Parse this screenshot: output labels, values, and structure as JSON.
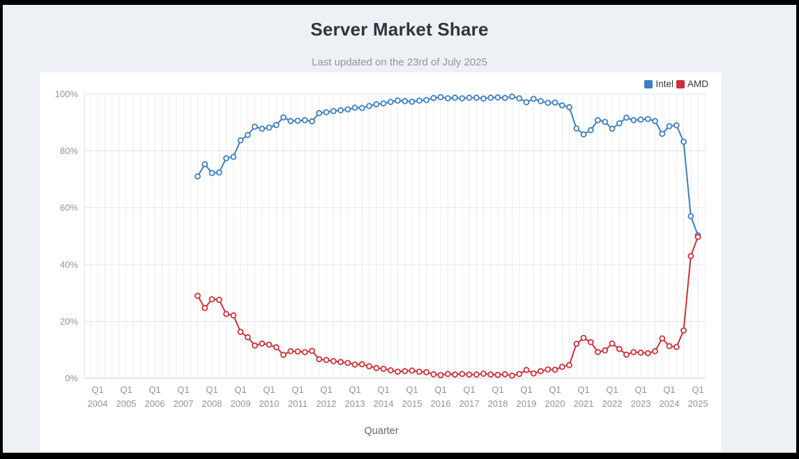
{
  "page": {
    "title": "Server Market Share",
    "subtitle": "Last updated on the 23rd of July 2025"
  },
  "chart_data": {
    "type": "line",
    "title": "Server Market Share",
    "xlabel": "Quarter",
    "ylabel": "",
    "ylim": [
      0,
      100
    ],
    "grid": true,
    "legend_position": "top-right",
    "x_axis": {
      "label": "Quarter",
      "tick_quarter": "Q1",
      "tick_years": [
        "2004",
        "2005",
        "2006",
        "2007",
        "2008",
        "2009",
        "2010",
        "2011",
        "2012",
        "2013",
        "2014",
        "2015",
        "2016",
        "2017",
        "2018",
        "2019",
        "2020",
        "2021",
        "2022",
        "2023",
        "2024",
        "2025"
      ]
    },
    "y_axis": {
      "ticks": [
        "0%",
        "20%",
        "40%",
        "60%",
        "80%",
        "100%"
      ]
    },
    "legend": [
      {
        "name": "Intel",
        "color": "#3c7ec0"
      },
      {
        "name": "AMD",
        "color": "#cc3036"
      }
    ],
    "quarters": [
      "Q3 2007",
      "Q4 2007",
      "Q1 2008",
      "Q2 2008",
      "Q3 2008",
      "Q4 2008",
      "Q1 2009",
      "Q2 2009",
      "Q3 2009",
      "Q4 2009",
      "Q1 2010",
      "Q2 2010",
      "Q3 2010",
      "Q4 2010",
      "Q1 2011",
      "Q2 2011",
      "Q3 2011",
      "Q4 2011",
      "Q1 2012",
      "Q2 2012",
      "Q3 2012",
      "Q4 2012",
      "Q1 2013",
      "Q2 2013",
      "Q3 2013",
      "Q4 2013",
      "Q1 2014",
      "Q2 2014",
      "Q3 2014",
      "Q4 2014",
      "Q1 2015",
      "Q2 2015",
      "Q3 2015",
      "Q4 2015",
      "Q1 2016",
      "Q2 2016",
      "Q3 2016",
      "Q4 2016",
      "Q1 2017",
      "Q2 2017",
      "Q3 2017",
      "Q4 2017",
      "Q1 2018",
      "Q2 2018",
      "Q3 2018",
      "Q4 2018",
      "Q1 2019",
      "Q2 2019",
      "Q3 2019",
      "Q4 2019",
      "Q1 2020",
      "Q2 2020",
      "Q3 2020",
      "Q4 2020",
      "Q1 2021",
      "Q2 2021",
      "Q3 2021",
      "Q4 2021",
      "Q1 2022",
      "Q2 2022",
      "Q3 2022",
      "Q4 2022",
      "Q1 2023",
      "Q2 2023",
      "Q3 2023",
      "Q4 2023",
      "Q1 2024",
      "Q2 2024",
      "Q3 2024",
      "Q4 2024",
      "Q1 2025"
    ],
    "first_data_quarter_index_from_Q1_2004": 14,
    "series": [
      {
        "name": "Intel",
        "color": "#3c7ec0",
        "values": [
          71.0,
          75.3,
          72.2,
          72.4,
          77.4,
          77.9,
          83.7,
          85.6,
          88.5,
          87.8,
          88.2,
          89.1,
          91.8,
          90.5,
          90.6,
          90.8,
          90.4,
          93.3,
          93.6,
          94.0,
          94.3,
          94.6,
          95.2,
          95.1,
          95.8,
          96.4,
          96.7,
          97.2,
          97.7,
          97.5,
          97.3,
          97.7,
          97.9,
          98.6,
          98.9,
          98.5,
          98.7,
          98.5,
          98.7,
          98.7,
          98.4,
          98.7,
          98.8,
          98.6,
          99.1,
          98.5,
          97.1,
          98.3,
          97.5,
          96.9,
          97.0,
          96.0,
          95.4,
          87.9,
          85.8,
          87.3,
          90.8,
          90.2,
          87.8,
          89.7,
          91.7,
          90.8,
          91.0,
          91.2,
          90.5,
          86.0,
          88.7,
          89.0,
          83.2,
          57.0,
          50.3
        ]
      },
      {
        "name": "AMD",
        "color": "#cc3036",
        "values": [
          29.0,
          24.7,
          27.8,
          27.6,
          22.6,
          22.1,
          16.3,
          14.4,
          11.5,
          12.2,
          11.8,
          10.9,
          8.2,
          9.5,
          9.4,
          9.2,
          9.6,
          6.7,
          6.4,
          6.0,
          5.7,
          5.4,
          4.8,
          4.9,
          4.2,
          3.6,
          3.3,
          2.8,
          2.3,
          2.5,
          2.7,
          2.3,
          2.1,
          1.4,
          1.1,
          1.5,
          1.3,
          1.5,
          1.3,
          1.3,
          1.6,
          1.3,
          1.2,
          1.4,
          0.9,
          1.5,
          2.9,
          1.7,
          2.5,
          3.1,
          3.0,
          4.0,
          4.6,
          12.1,
          14.2,
          12.7,
          9.2,
          9.8,
          12.2,
          10.3,
          8.3,
          9.2,
          9.0,
          8.8,
          9.5,
          14.0,
          11.3,
          11.0,
          16.8,
          43.0,
          49.7
        ]
      }
    ]
  }
}
